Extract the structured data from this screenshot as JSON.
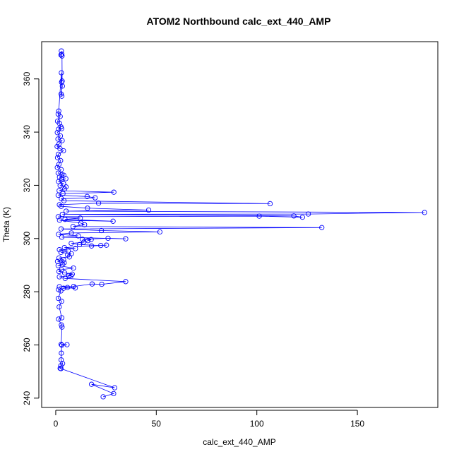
{
  "chart_data": {
    "type": "scatter",
    "title": "ATOM2 Northbound calc_ext_440_AMP",
    "xlabel": "calc_ext_440_AMP",
    "ylabel": "Theta (K)",
    "xlim": [
      -7,
      190
    ],
    "ylim": [
      236.5,
      374
    ],
    "x_ticks": [
      0,
      50,
      100,
      150
    ],
    "y_ticks": [
      240,
      260,
      280,
      300,
      320,
      340,
      360
    ],
    "series": [
      {
        "name": "calc_ext_440_AMP",
        "color": "#0000ff",
        "marker": "open-circle",
        "line": true,
        "points": [
          [
            2.8,
            370.5
          ],
          [
            3.0,
            369.3
          ],
          [
            2.6,
            369.0
          ],
          [
            3.1,
            368.6
          ],
          [
            3.2,
            359.2
          ],
          [
            2.9,
            358.7
          ],
          [
            3.3,
            357.3
          ],
          [
            2.7,
            354.3
          ],
          [
            3.0,
            353.5
          ],
          [
            2.8,
            362.3
          ],
          [
            1.5,
            347.9
          ],
          [
            1.2,
            346.8
          ],
          [
            2.2,
            345.9
          ],
          [
            0.9,
            344.1
          ],
          [
            1.8,
            343.3
          ],
          [
            2.6,
            342.0
          ],
          [
            1.4,
            341.1
          ],
          [
            2.9,
            341.3
          ],
          [
            0.8,
            339.8
          ],
          [
            2.3,
            338.6
          ],
          [
            1.1,
            337.4
          ],
          [
            3.2,
            336.8
          ],
          [
            1.6,
            335.5
          ],
          [
            0.7,
            334.6
          ],
          [
            2.1,
            333.8
          ],
          [
            3.8,
            333.0
          ],
          [
            1.3,
            331.7
          ],
          [
            0.9,
            330.4
          ],
          [
            2.4,
            329.3
          ],
          [
            1.6,
            327.9
          ],
          [
            0.8,
            326.7
          ],
          [
            2.7,
            325.9
          ],
          [
            1.2,
            324.6
          ],
          [
            3.1,
            324.0
          ],
          [
            4.0,
            323.8
          ],
          [
            1.9,
            323.1
          ],
          [
            2.9,
            322.2
          ],
          [
            5.0,
            322.5
          ],
          [
            1.4,
            321.4
          ],
          [
            3.9,
            320.6
          ],
          [
            2.2,
            319.9
          ],
          [
            5.1,
            319.4
          ],
          [
            4.4,
            318.6
          ],
          [
            1.7,
            318.0
          ],
          [
            28.9,
            317.4
          ],
          [
            3.6,
            316.9
          ],
          [
            1.2,
            316.3
          ],
          [
            15.6,
            315.8
          ],
          [
            19.6,
            315.3
          ],
          [
            2.8,
            315.0
          ],
          [
            4.1,
            314.2
          ],
          [
            106.6,
            313.1
          ],
          [
            21.3,
            313.3
          ],
          [
            1.8,
            312.7
          ],
          [
            2.7,
            312.1
          ],
          [
            15.8,
            311.4
          ],
          [
            46.2,
            310.7
          ],
          [
            5.2,
            310.3
          ],
          [
            183.4,
            309.8
          ],
          [
            125.6,
            309.2
          ],
          [
            3.3,
            309.1
          ],
          [
            118.4,
            308.5
          ],
          [
            122.7,
            308.0
          ],
          [
            101.2,
            308.4
          ],
          [
            1.2,
            308.2
          ],
          [
            12.2,
            307.7
          ],
          [
            4.6,
            307.2
          ],
          [
            28.5,
            306.5
          ],
          [
            1.9,
            306.9
          ],
          [
            12.5,
            305.8
          ],
          [
            14.3,
            305.2
          ],
          [
            8.6,
            304.5
          ],
          [
            132.3,
            304.1
          ],
          [
            2.7,
            303.6
          ],
          [
            22.7,
            303.0
          ],
          [
            51.8,
            302.5
          ],
          [
            7.8,
            302.1
          ],
          [
            1.4,
            301.6
          ],
          [
            11.2,
            301.0
          ],
          [
            3.0,
            300.5
          ],
          [
            34.8,
            299.9
          ],
          [
            26.0,
            300.1
          ],
          [
            13.3,
            299.7
          ],
          [
            17.6,
            299.6
          ],
          [
            16.0,
            299.2
          ],
          [
            13.9,
            298.6
          ],
          [
            7.7,
            298.2
          ],
          [
            11.8,
            297.7
          ],
          [
            22.4,
            297.4
          ],
          [
            25.2,
            297.5
          ],
          [
            17.8,
            297.2
          ],
          [
            4.3,
            296.6
          ],
          [
            9.8,
            296.2
          ],
          [
            1.8,
            295.8
          ],
          [
            6.2,
            295.3
          ],
          [
            2.6,
            294.8
          ],
          [
            7.8,
            294.3
          ],
          [
            5.9,
            293.8
          ],
          [
            6.8,
            293.1
          ],
          [
            1.6,
            292.7
          ],
          [
            3.9,
            292.0
          ],
          [
            0.9,
            291.4
          ],
          [
            4.2,
            290.9
          ],
          [
            3.4,
            290.4
          ],
          [
            1.2,
            289.8
          ],
          [
            8.8,
            288.9
          ],
          [
            2.9,
            288.3
          ],
          [
            1.6,
            287.6
          ],
          [
            4.4,
            287.1
          ],
          [
            8.2,
            286.6
          ],
          [
            6.6,
            286.1
          ],
          [
            7.6,
            286.0
          ],
          [
            1.8,
            285.6
          ],
          [
            4.7,
            285.0
          ],
          [
            34.8,
            283.8
          ],
          [
            22.9,
            282.8
          ],
          [
            18.1,
            282.9
          ],
          [
            8.9,
            282.0
          ],
          [
            1.8,
            281.9
          ],
          [
            9.7,
            281.4
          ],
          [
            3.9,
            281.3
          ],
          [
            5.8,
            281.6
          ],
          [
            1.4,
            280.8
          ],
          [
            2.5,
            280.3
          ],
          [
            1.3,
            277.5
          ],
          [
            2.9,
            276.4
          ],
          [
            1.7,
            274.3
          ],
          [
            3.0,
            270.2
          ],
          [
            1.4,
            269.7
          ],
          [
            2.8,
            267.5
          ],
          [
            3.1,
            266.7
          ],
          [
            2.7,
            260.2
          ],
          [
            5.6,
            260.1
          ],
          [
            3.0,
            259.9
          ],
          [
            2.8,
            256.9
          ],
          [
            2.7,
            254.4
          ],
          [
            3.4,
            253.0
          ],
          [
            2.5,
            252.2
          ],
          [
            2.2,
            251.2
          ],
          [
            2.6,
            251.1
          ],
          [
            29.3,
            243.9
          ],
          [
            17.8,
            245.2
          ],
          [
            28.8,
            241.7
          ],
          [
            23.6,
            240.5
          ]
        ]
      }
    ]
  }
}
